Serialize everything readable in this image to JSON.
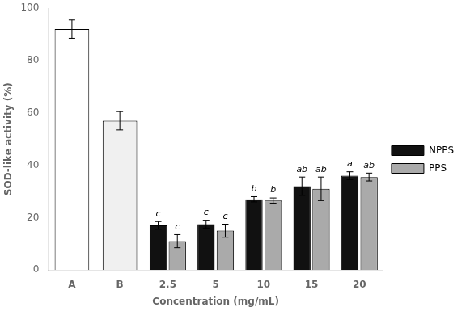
{
  "chart_data": {
    "type": "bar",
    "categories": [
      "A",
      "B",
      "2.5",
      "5",
      "10",
      "15",
      "20"
    ],
    "series": [
      {
        "name": "NPPS",
        "color": "#111111",
        "colors": [
          "#ffffff",
          null,
          "#111111",
          "#111111",
          "#111111",
          "#111111",
          "#111111"
        ],
        "values": [
          92.0,
          null,
          17.0,
          17.5,
          27.0,
          32.0,
          36.0
        ],
        "errors": [
          3.5,
          null,
          1.5,
          1.5,
          1.0,
          3.5,
          1.5
        ]
      },
      {
        "name": "PPS",
        "color": "#aaaaaa",
        "colors": [
          null,
          "#f0f0f0",
          "#aaaaaa",
          "#aaaaaa",
          "#aaaaaa",
          "#aaaaaa",
          "#aaaaaa"
        ],
        "values": [
          null,
          57.0,
          11.0,
          15.0,
          26.5,
          31.0,
          35.5
        ],
        "errors": [
          null,
          3.5,
          2.5,
          2.5,
          1.0,
          4.5,
          1.5
        ]
      }
    ],
    "annotations": [
      {
        "category": "2.5",
        "series": "NPPS",
        "text": "c"
      },
      {
        "category": "5",
        "series": "NPPS",
        "text": "c"
      },
      {
        "category": "10",
        "series": "NPPS",
        "text": "b"
      },
      {
        "category": "15",
        "series": "NPPS",
        "text": "ab"
      },
      {
        "category": "20",
        "series": "NPPS",
        "text": "a"
      },
      {
        "category": "2.5",
        "series": "PPS",
        "text": "c"
      },
      {
        "category": "5",
        "series": "PPS",
        "text": "c"
      },
      {
        "category": "10",
        "series": "PPS",
        "text": "b"
      },
      {
        "category": "15",
        "series": "PPS",
        "text": "ab"
      },
      {
        "category": "20",
        "series": "PPS",
        "text": "ab"
      }
    ],
    "xlabel": "Concentration (mg/mL)",
    "ylabel": "SOD-like activity (%)",
    "ylim": [
      0,
      100
    ],
    "yticks": [
      0,
      20,
      40,
      60,
      80,
      100
    ],
    "grid": false,
    "legend": "right"
  }
}
